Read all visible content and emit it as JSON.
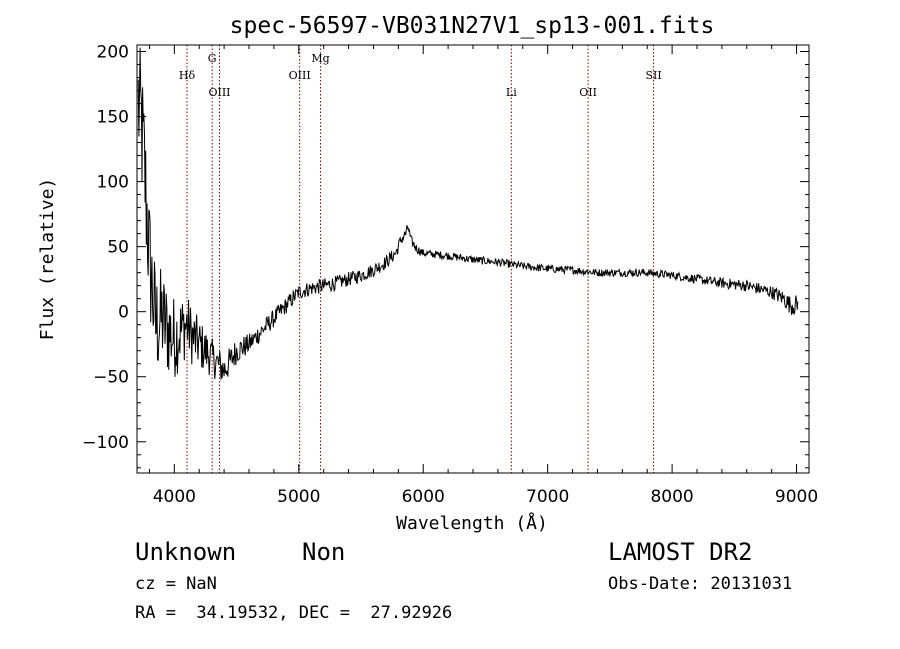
{
  "chart_data": {
    "type": "line",
    "title": "spec-56597-VB031N27V1_sp13-001.fits",
    "xlabel": "Wavelength (Å)",
    "ylabel": "Flux (relative)",
    "xlim": [
      3700,
      9100
    ],
    "ylim": [
      -124,
      205
    ],
    "xticks": [
      4000,
      5000,
      6000,
      7000,
      8000,
      9000
    ],
    "xtick_labels": [
      "4000",
      "5000",
      "6000",
      "7000",
      "8000",
      "9000"
    ],
    "yticks": [
      -100,
      -50,
      0,
      50,
      100,
      150,
      200
    ],
    "ytick_labels": [
      "−100",
      "−50",
      "0",
      "50",
      "100",
      "150",
      "200"
    ],
    "grid": false,
    "line_color": "#000000",
    "marker_color": "#8b0000",
    "line_markers": [
      {
        "label": "Hδ",
        "x": 4102,
        "level": "mid"
      },
      {
        "label": "G",
        "x": 4304,
        "level": "top"
      },
      {
        "label": "OIII",
        "x": 4363,
        "level": "low"
      },
      {
        "label": "OIII",
        "x": 5007,
        "level": "mid"
      },
      {
        "label": "Mg",
        "x": 5175,
        "level": "top"
      },
      {
        "label": "Li",
        "x": 6708,
        "level": "low"
      },
      {
        "label": "OII",
        "x": 7325,
        "level": "low"
      },
      {
        "label": "SII",
        "x": 7851,
        "level": "mid"
      }
    ],
    "series": [
      {
        "anchors": [
          [
            3710,
            160
          ],
          [
            3730,
            150
          ],
          [
            3760,
            110
          ],
          [
            3800,
            40
          ],
          [
            3850,
            -10
          ],
          [
            3900,
            -5
          ],
          [
            3950,
            -15
          ],
          [
            4000,
            -20
          ],
          [
            4050,
            -15
          ],
          [
            4100,
            -10
          ],
          [
            4150,
            -20
          ],
          [
            4200,
            -25
          ],
          [
            4250,
            -30
          ],
          [
            4300,
            -35
          ],
          [
            4350,
            -40
          ],
          [
            4400,
            -45
          ],
          [
            4450,
            -38
          ],
          [
            4500,
            -30
          ],
          [
            4600,
            -25
          ],
          [
            4700,
            -15
          ],
          [
            4800,
            -5
          ],
          [
            4900,
            5
          ],
          [
            5000,
            15
          ],
          [
            5100,
            18
          ],
          [
            5200,
            20
          ],
          [
            5300,
            22
          ],
          [
            5400,
            25
          ],
          [
            5500,
            28
          ],
          [
            5600,
            32
          ],
          [
            5700,
            38
          ],
          [
            5780,
            45
          ],
          [
            5820,
            55
          ],
          [
            5860,
            60
          ],
          [
            5880,
            65
          ],
          [
            5900,
            55
          ],
          [
            5950,
            48
          ],
          [
            6000,
            45
          ],
          [
            6200,
            43
          ],
          [
            6400,
            40
          ],
          [
            6600,
            38
          ],
          [
            6800,
            35
          ],
          [
            7000,
            33
          ],
          [
            7200,
            32
          ],
          [
            7400,
            30
          ],
          [
            7600,
            30
          ],
          [
            7800,
            30
          ],
          [
            8000,
            28
          ],
          [
            8200,
            25
          ],
          [
            8400,
            22
          ],
          [
            8600,
            20
          ],
          [
            8800,
            15
          ],
          [
            8900,
            10
          ],
          [
            8950,
            5
          ],
          [
            9000,
            5
          ]
        ],
        "noise": [
          [
            3700,
            60
          ],
          [
            3900,
            40
          ],
          [
            4100,
            25
          ],
          [
            4300,
            15
          ],
          [
            4600,
            8
          ],
          [
            5000,
            6
          ],
          [
            5800,
            5
          ],
          [
            6000,
            3
          ],
          [
            8000,
            3
          ],
          [
            8800,
            5
          ],
          [
            9000,
            8
          ]
        ]
      }
    ]
  },
  "footer": {
    "object_class": "Unknown",
    "object_subclass": "Non",
    "cz": "cz = NaN",
    "coords": "RA =  34.19532, DEC =  27.92926",
    "survey": "LAMOST DR2",
    "obs_date": "Obs-Date: 20131031"
  }
}
